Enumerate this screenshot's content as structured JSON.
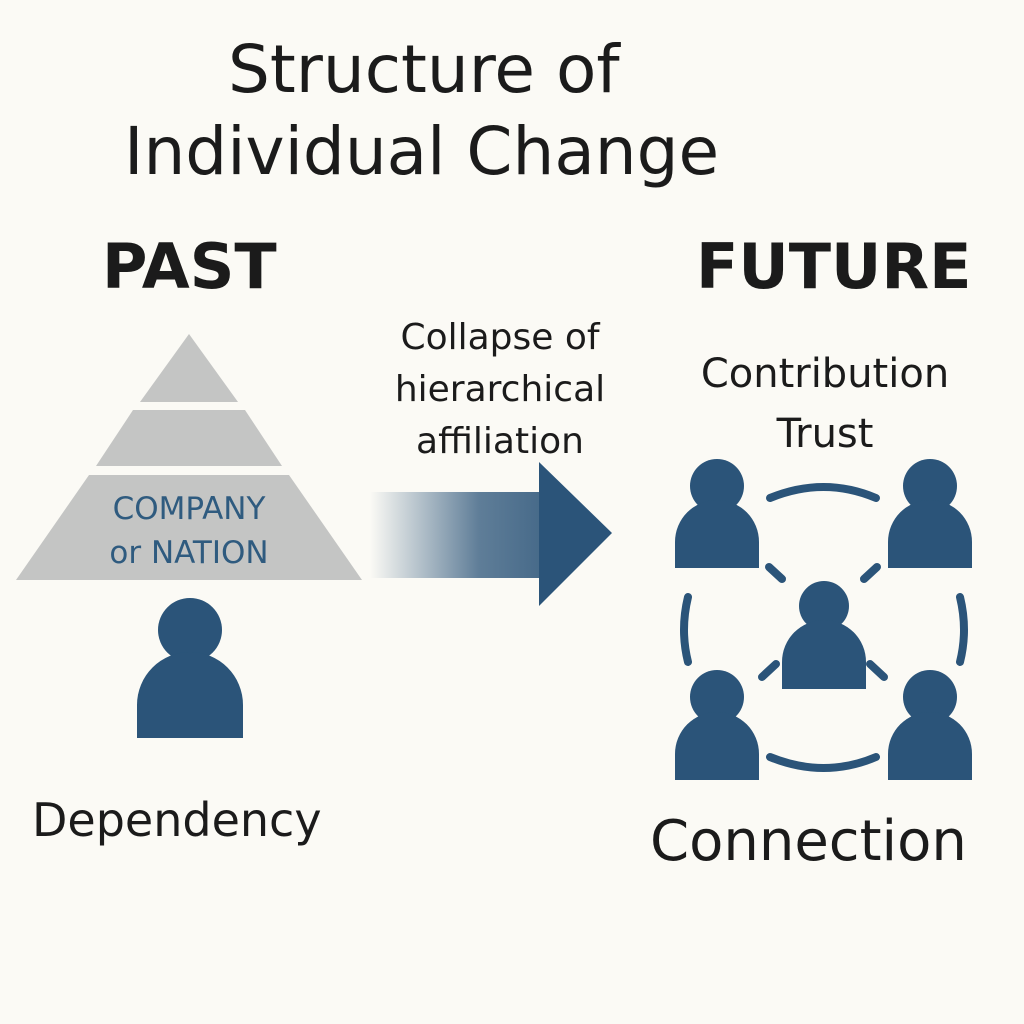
{
  "title": {
    "line1": "Structure of",
    "line2": "Individual Change"
  },
  "past": {
    "heading": "PAST",
    "pyramid_label_line1": "COMPANY",
    "pyramid_label_line2": "or NATION",
    "label": "Dependency"
  },
  "transition": {
    "caption_line1": "Collapse of",
    "caption_line2": "hierarchical",
    "caption_line3": "affiliation"
  },
  "future": {
    "heading": "FUTURE",
    "word1": "Contribution",
    "word2": "Trust",
    "label": "Connection"
  },
  "colors": {
    "background": "#fbfaf5",
    "person_blue": "#2b5479",
    "pyramid_gray": "#c4c5c4",
    "text_dark": "#1b1b1b"
  },
  "icons": {
    "past_person": "person-icon",
    "future_people": "people-network-icon",
    "transition_arrow": "right-arrow-icon",
    "pyramid": "pyramid-icon"
  }
}
